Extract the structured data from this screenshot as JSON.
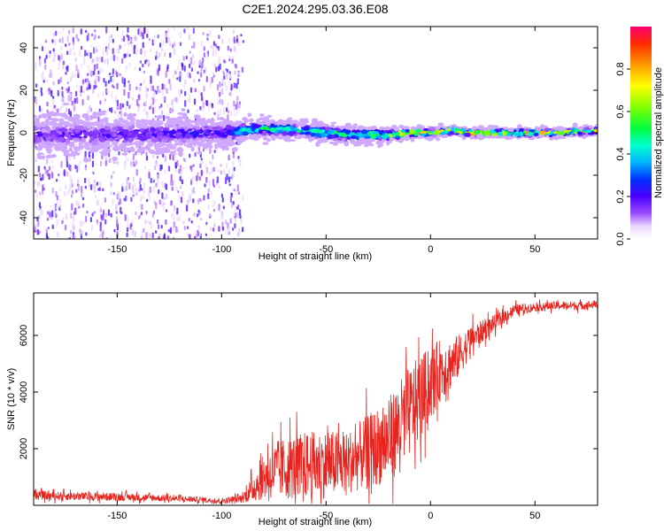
{
  "title": "C2E1.2024.295.03.36.E08",
  "chart_data": [
    {
      "type": "heatmap",
      "xlabel": "Height of straight line (km)",
      "ylabel": "Frequency (Hz)",
      "xlim": [
        -190,
        80
      ],
      "ylim": [
        -50,
        50
      ],
      "xticks": [
        -150,
        -100,
        -50,
        0,
        50
      ],
      "yticks": [
        -40,
        -20,
        0,
        20,
        40
      ],
      "colorbar": {
        "label": "Normalized spectral amplitude",
        "range": [
          0,
          1
        ],
        "ticks": [
          "0.0",
          "0.2",
          "0.4",
          "0.6",
          "0.8"
        ],
        "colormap": "rainbow"
      },
      "band_profile": {
        "x": [
          -190,
          -150,
          -100,
          -90,
          -80,
          -60,
          -40,
          -20,
          -10,
          0,
          10,
          20,
          40,
          60,
          80
        ],
        "center_hz": [
          -1,
          -1,
          0,
          1,
          2,
          1,
          -1,
          -1,
          0,
          0,
          1,
          0,
          0,
          0,
          1
        ],
        "half_width_hz": [
          9,
          9,
          6,
          5,
          4,
          4,
          4,
          3,
          2.5,
          2.5,
          2,
          2,
          2,
          2,
          2
        ],
        "peak_amplitude": [
          0.18,
          0.2,
          0.25,
          0.45,
          0.5,
          0.5,
          0.55,
          0.65,
          0.85,
          0.75,
          0.8,
          0.95,
          0.8,
          0.7,
          0.7
        ]
      },
      "noise_cutoff_x": -90
    },
    {
      "type": "line",
      "xlabel": "Height of straight line (km)",
      "ylabel": "SNR (10 * v/v)",
      "xlim": [
        -190,
        80
      ],
      "ylim": [
        0,
        7500
      ],
      "xticks": [
        -150,
        -100,
        -50,
        0,
        50
      ],
      "yticks": [
        2000,
        4000,
        6000
      ],
      "series": [
        {
          "color": "#e8231e",
          "envelope_x": [
            -190,
            -170,
            -150,
            -130,
            -110,
            -100,
            -90,
            -85,
            -80,
            -75,
            -70,
            -60,
            -50,
            -40,
            -30,
            -20,
            -15,
            -10,
            -5,
            0,
            5,
            10,
            15,
            20,
            30,
            40,
            50,
            60,
            70,
            80
          ],
          "envelope_mean": [
            350,
            320,
            300,
            260,
            200,
            150,
            250,
            600,
            1000,
            1200,
            1300,
            1400,
            1450,
            1500,
            1900,
            2300,
            2800,
            3300,
            3800,
            4300,
            4800,
            5000,
            5400,
            5900,
            6400,
            6900,
            7000,
            7050,
            7050,
            7100
          ],
          "envelope_spread": [
            150,
            150,
            140,
            120,
            100,
            100,
            150,
            500,
            800,
            1000,
            1100,
            1200,
            1200,
            1100,
            1300,
            1500,
            1600,
            1600,
            1500,
            1300,
            1100,
            900,
            700,
            500,
            300,
            200,
            150,
            150,
            150,
            150
          ]
        }
      ]
    }
  ]
}
